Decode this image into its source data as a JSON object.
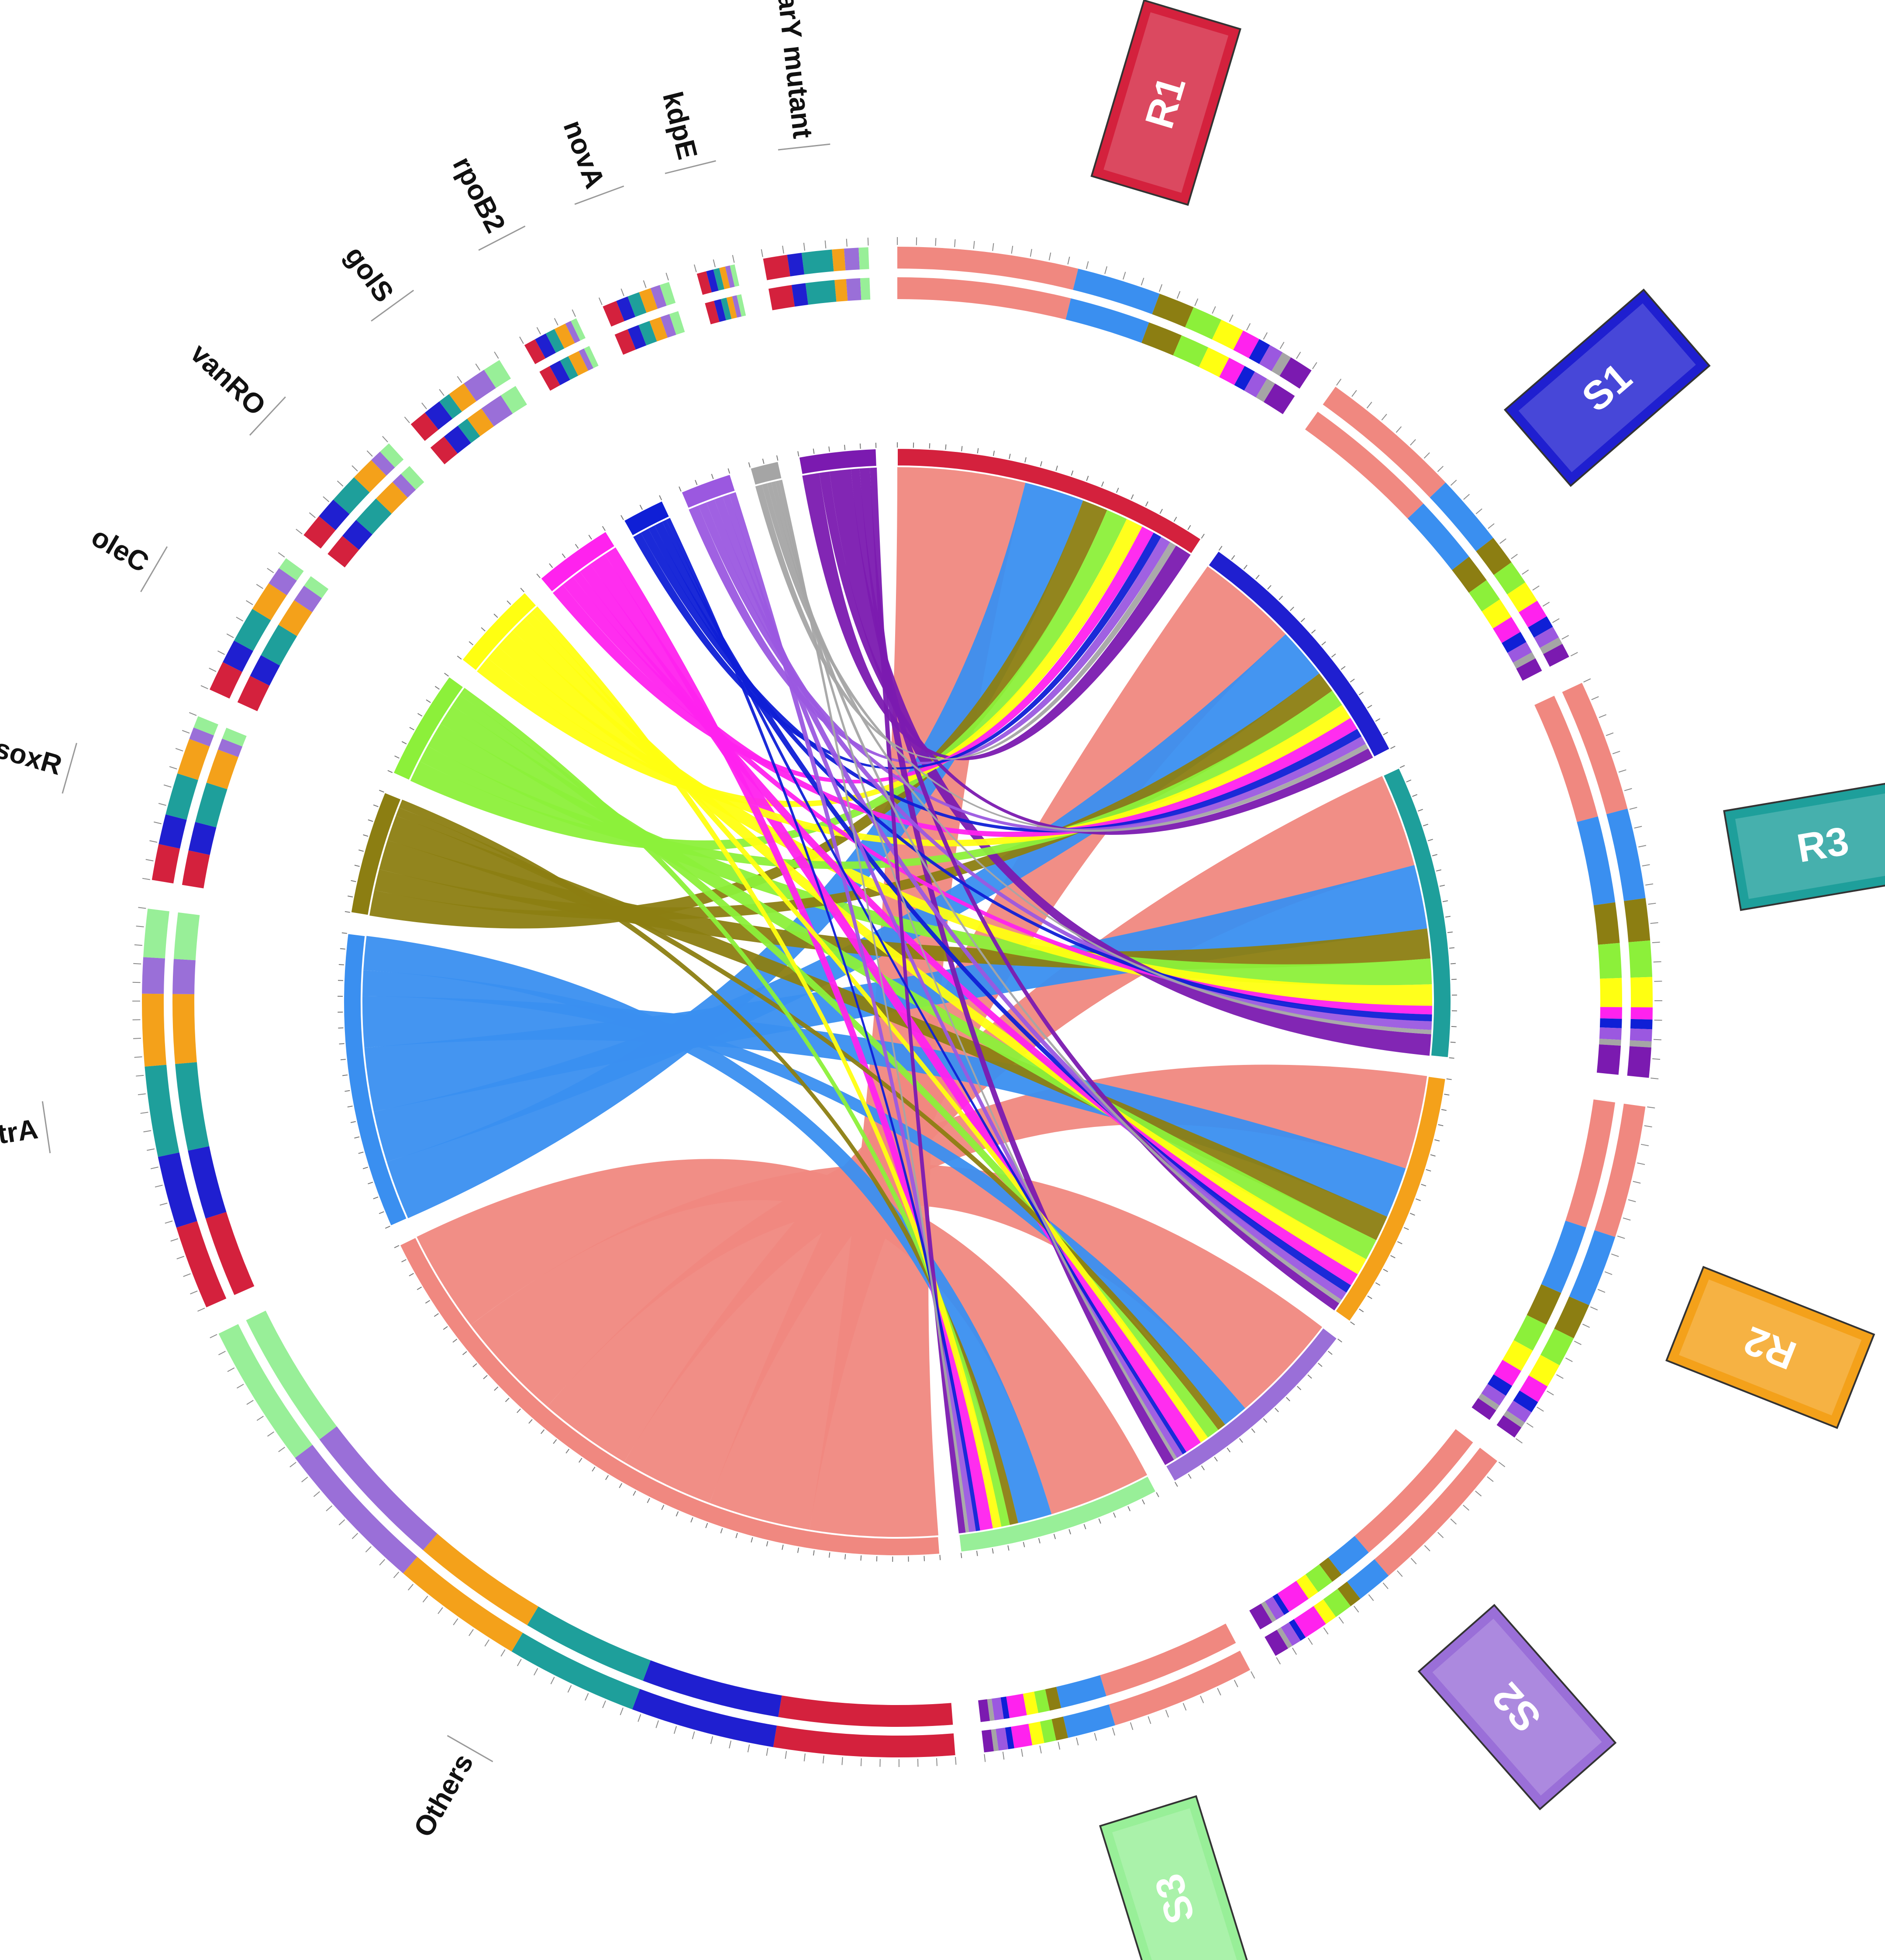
{
  "colors": {
    "R1": "#d4213d",
    "S1": "#1f1fd0",
    "R3": "#1e9f9b",
    "R2": "#f4a11a",
    "S2": "#9a6fd8",
    "S3": "#98ef98",
    "Others": "#f08880",
    "mtrA": "#3a8ff0",
    "soxR": "#8c7e12",
    "oleC": "#8cf03a",
    "vanRO": "#ffff11",
    "golS": "#ff22ee",
    "rpoB2": "#0f1fd6",
    "novA": "#9b58e0",
    "kdpE": "#a5a5a5",
    "parY mutant": "#7b1ab0"
  },
  "sample_labels": [
    "R1",
    "S1",
    "R3",
    "R2",
    "S2",
    "S3"
  ],
  "gene_labels": [
    "parY mutant",
    "kdpE",
    "novA",
    "rpoB2",
    "golS",
    "vanRO",
    "oleC",
    "soxR",
    "mtrA",
    "Others"
  ],
  "chart_data": {
    "type": "chord",
    "samples": [
      "R1",
      "S1",
      "R3",
      "R2",
      "S2",
      "S3"
    ],
    "genes": [
      "Others",
      "mtrA",
      "soxR",
      "oleC",
      "vanRO",
      "golS",
      "rpoB2",
      "novA",
      "kdpE",
      "parY mutant"
    ],
    "matrix": [
      [
        150,
        70,
        30,
        25,
        20,
        15,
        10,
        12,
        8,
        20
      ],
      [
        120,
        60,
        25,
        20,
        18,
        15,
        10,
        10,
        6,
        12
      ],
      [
        110,
        75,
        35,
        30,
        25,
        10,
        8,
        10,
        5,
        25
      ],
      [
        110,
        60,
        30,
        25,
        20,
        15,
        10,
        10,
        5,
        10
      ],
      [
        130,
        30,
        10,
        15,
        10,
        20,
        5,
        8,
        4,
        12
      ],
      [
        120,
        40,
        10,
        10,
        10,
        15,
        5,
        8,
        4,
        8
      ]
    ]
  }
}
